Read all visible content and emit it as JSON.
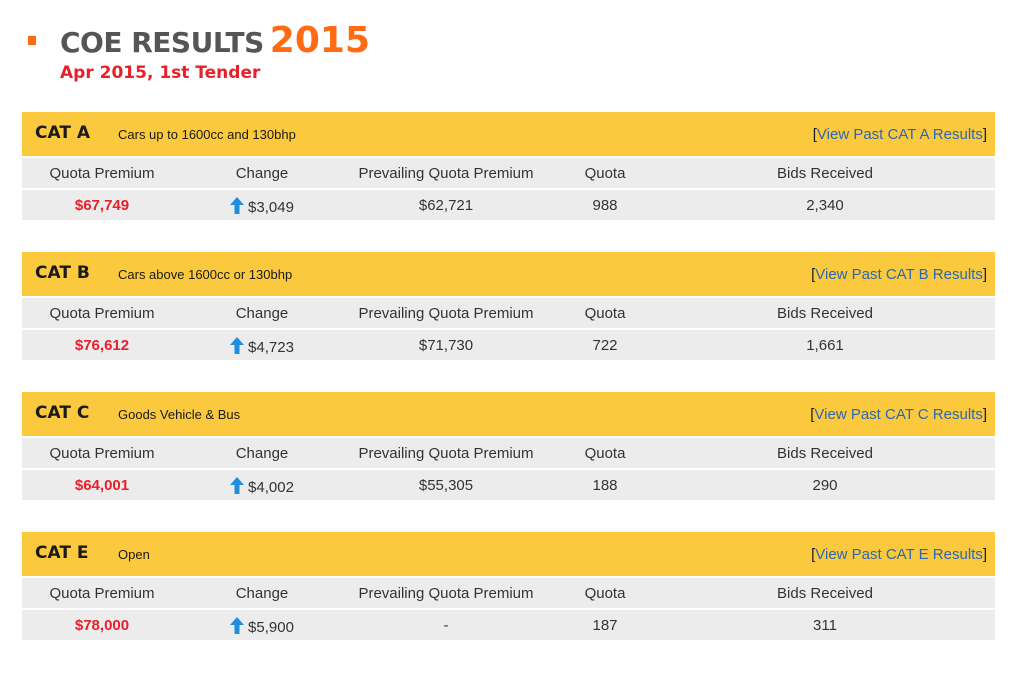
{
  "header": {
    "title": "COE RESULTS",
    "year": "2015",
    "subtitle": "Apr 2015, 1st Tender"
  },
  "column_labels": [
    "Quota Premium",
    "Change",
    "Prevailing Quota Premium",
    "Quota",
    "Bids Received"
  ],
  "categories": [
    {
      "code": "CAT A",
      "description": "Cars up to 1600cc and 130bhp",
      "link_open": "[",
      "link_text": "View Past CAT A Results",
      "link_close": "]",
      "quota_premium": "$67,749",
      "change": "$3,049",
      "change_direction": "up",
      "prevailing_quota_premium": "$62,721",
      "quota": "988",
      "bids_received": "2,340"
    },
    {
      "code": "CAT B",
      "description": "Cars above 1600cc or 130bhp",
      "link_open": "[",
      "link_text": "View Past CAT B Results",
      "link_close": "]",
      "quota_premium": "$76,612",
      "change": "$4,723",
      "change_direction": "up",
      "prevailing_quota_premium": "$71,730",
      "quota": "722",
      "bids_received": "1,661"
    },
    {
      "code": "CAT C",
      "description": "Goods Vehicle & Bus",
      "link_open": "[",
      "link_text": "View Past CAT C Results",
      "link_close": "]",
      "quota_premium": "$64,001",
      "change": "$4,002",
      "change_direction": "up",
      "prevailing_quota_premium": "$55,305",
      "quota": "188",
      "bids_received": "290"
    },
    {
      "code": "CAT E",
      "description": "Open",
      "link_open": "[",
      "link_text": "View Past CAT E Results",
      "link_close": "]",
      "quota_premium": "$78,000",
      "change": "$5,900",
      "change_direction": "up",
      "prevailing_quota_premium": "-",
      "quota": "187",
      "bids_received": "311"
    }
  ],
  "colors": {
    "accent_orange": "#ff6a13",
    "premium_red": "#e8202a",
    "header_yellow": "#fbc93d",
    "row_grey": "#ececec",
    "link_blue": "#2b68b1",
    "arrow_blue": "#1e8fe0"
  },
  "icons": {
    "change_up": "arrow-up-icon"
  }
}
